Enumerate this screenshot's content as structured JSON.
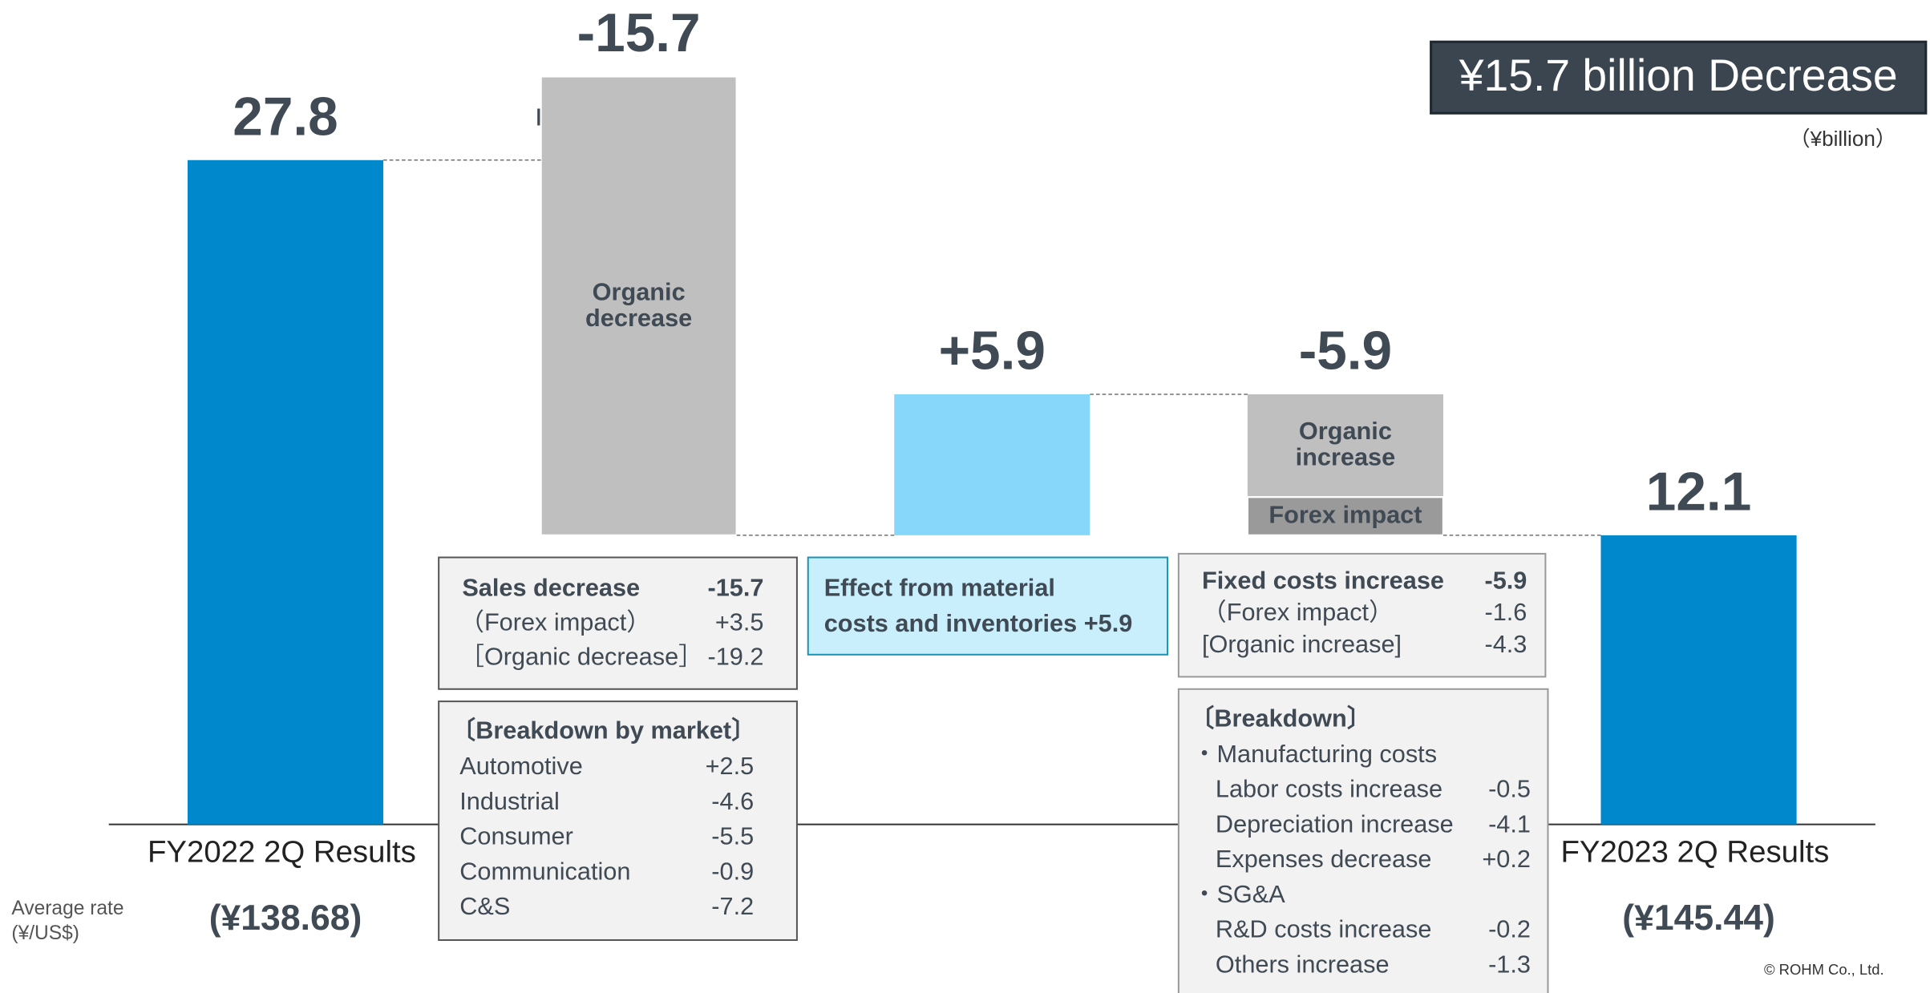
{
  "chart_data": {
    "type": "waterfall",
    "headline": "¥15.7 billion Decrease",
    "unit": "（¥billion）",
    "categories": [
      "FY2022 2Q Results",
      null,
      null,
      null,
      "FY2023 2Q Results"
    ],
    "measures": [
      "total",
      "relative",
      "relative",
      "relative",
      "total"
    ],
    "values": [
      27.8,
      -15.7,
      5.9,
      -5.9,
      12.1
    ],
    "value_labels": [
      "27.8",
      "-15.7",
      "+5.9",
      "-5.9",
      "12.1"
    ],
    "colors": [
      "#0088cc",
      null,
      "#87d7fb",
      null,
      "#0088cc"
    ],
    "segments": [
      null,
      [
        {
          "name": "Forex impact",
          "value": 3.5,
          "color": "#87d7fb"
        },
        {
          "name": "Organic decrease",
          "value": -19.2,
          "color": "#bfbfbf"
        }
      ],
      null,
      [
        {
          "name": "Organic increase",
          "value": -4.3,
          "color": "#bfbfbf"
        },
        {
          "name": "Forex impact",
          "value": -1.6,
          "color": "#9a9a9a"
        }
      ],
      null
    ],
    "ylim": [
      0,
      34.5
    ],
    "rate_label": [
      "Average rate",
      "(¥/US$)"
    ],
    "rates": [
      "(¥138.68)",
      "(¥145.44)"
    ]
  },
  "boxes": {
    "sales": [
      [
        "Sales decrease",
        "-15.7"
      ],
      [
        "（Forex impact）",
        "+3.5"
      ],
      [
        "［Organic decrease］",
        "-19.2"
      ]
    ],
    "market": {
      "title": "〔Breakdown by market〕",
      "rows": [
        [
          "Automotive",
          "+2.5"
        ],
        [
          "Industrial",
          "-4.6"
        ],
        [
          "Consumer",
          "-5.5"
        ],
        [
          "Communication",
          "-0.9"
        ],
        [
          "C&S",
          "-7.2"
        ]
      ]
    },
    "material": [
      "Effect from material",
      "costs and inventories +5.9"
    ],
    "fixed": [
      [
        "Fixed costs increase",
        "-5.9"
      ],
      [
        "（Forex impact）",
        "-1.6"
      ],
      [
        "[Organic increase]",
        "-4.3"
      ]
    ],
    "breakdown": {
      "title": "〔Breakdown〕",
      "rows": [
        [
          "・Manufacturing costs"
        ],
        [
          "Labor costs increase",
          "-0.5"
        ],
        [
          "Depreciation increase",
          "-4.1"
        ],
        [
          "Expenses decrease",
          "+0.2"
        ],
        [
          "・SG&A"
        ],
        [
          "R&D costs increase",
          "-0.2"
        ],
        [
          "Others increase",
          "-1.3"
        ]
      ]
    }
  },
  "copyright": "© ROHM Co., Ltd."
}
